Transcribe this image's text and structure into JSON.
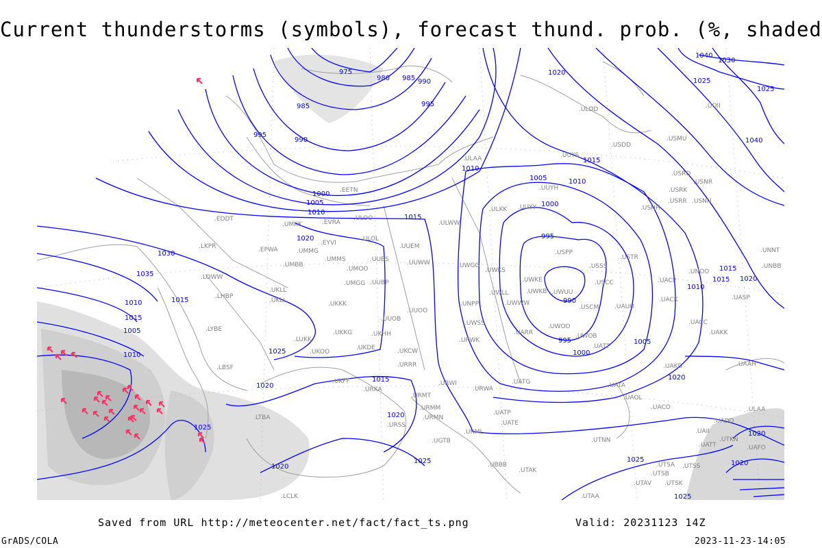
{
  "title": "Current thunderstorms (symbols), forecast thund. prob. (%, shaded)",
  "footer": {
    "saved_from": "Saved from URL http://meteocenter.net/fact/fact_ts.png",
    "valid": "Valid: 20231123 14Z",
    "credit": "GrADS/COLA",
    "timestamp": "2023-11-23-14:05"
  },
  "colors": {
    "isobar": "#0000ff",
    "coast": "#a0a0a0",
    "station": "#808080",
    "storm": "#ff3366",
    "shade": "#c8c8c8"
  },
  "isobar_labels": [
    "975",
    "980",
    "985",
    "990",
    "995",
    "985",
    "990",
    "995",
    "1000",
    "1005",
    "1010",
    "1015",
    "1020",
    "1025",
    "1030",
    "1035",
    "1040",
    "1040",
    "1020",
    "1025",
    "1030",
    "1025",
    "1020",
    "1015",
    "1010",
    "1005",
    "1010",
    "1015",
    "1020",
    "1025",
    "1020",
    "1025",
    "1020",
    "1005",
    "1000",
    "995",
    "990",
    "995",
    "1000",
    "1005",
    "1010",
    "1015",
    "1010",
    "1015",
    "1020",
    "1025",
    "1015",
    "1020",
    "1020",
    "1010",
    "1015",
    "1025"
  ],
  "stations": [
    "EDDT",
    "LKPR",
    "EPWA",
    "UMBB",
    "UMMG",
    "EYVI",
    "ULOL",
    "UUEM",
    "UMMS",
    "UMOO",
    "UUBS",
    "UUWW",
    "LOWW",
    "UKLL",
    "UMGG",
    "UUBP",
    "LHBP",
    "UKLI",
    "UKKK",
    "UUOO",
    "UUOB",
    "LYBE",
    "LUKK",
    "UKHH",
    "UKOO",
    "UKKG",
    "UKDE",
    "UKCW",
    "URRR",
    "LBSF",
    "ULOO",
    "ULWW",
    "UMKK",
    "EVRA",
    "EETN",
    "ULAA",
    "ULDD",
    "USDD",
    "UUYS",
    "USMU",
    "UOII",
    "USRO",
    "USNR",
    "USRK",
    "USRR",
    "USNN",
    "UUYH",
    "UUYY",
    "ULKK",
    "USHH",
    "UWGG",
    "UWKS",
    "UWKE",
    "USPP",
    "USSS",
    "USTR",
    "UNOO",
    "UACP",
    "USCC",
    "UWKB",
    "UWUU",
    "UWLL",
    "UWWW",
    "UNPP",
    "USCM",
    "UAUU",
    "UACK",
    "UASP",
    "UWSS",
    "UWOO",
    "UARR",
    "UATT",
    "UWOB",
    "UACC",
    "UAKK",
    "URWK",
    "UAKD",
    "UAAH",
    "UATG",
    "URWI",
    "URMT",
    "URWA",
    "URKA",
    "UKFF",
    "URSS",
    "URMM",
    "URMN",
    "UATP",
    "UATE",
    "UATA",
    "UAOL",
    "UACO",
    "UADD",
    "UAII",
    "UATT",
    "UTKN",
    "UAFO",
    "URML",
    "UGTB",
    "UBBB",
    "UTNN",
    "UTAK",
    "UTSA",
    "UTSS",
    "UTSB",
    "UTAV",
    "UTSK",
    "UTAA",
    "LTBA",
    "LCLK",
    "ULAA",
    "UNNT",
    "UNBB"
  ],
  "storm_symbol": "thunderstorm-arrow-icon"
}
